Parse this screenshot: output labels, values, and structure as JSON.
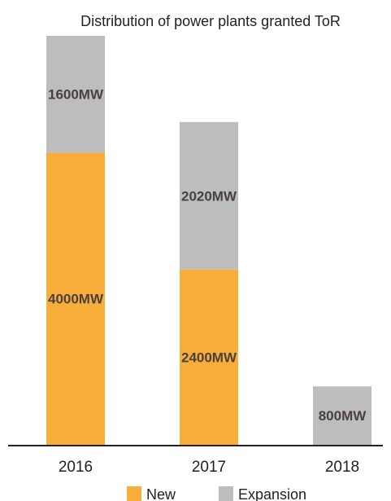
{
  "chart_data": {
    "type": "bar",
    "stacked": true,
    "title": "Distribution of power plants granted ToR",
    "xlabel": "",
    "ylabel": "",
    "categories": [
      "2016",
      "2017",
      "2018"
    ],
    "series": [
      {
        "name": "New",
        "color": "#f9ae3b",
        "values": [
          4000,
          2400,
          0
        ],
        "labels": [
          "4000MW",
          "2400MW",
          ""
        ]
      },
      {
        "name": "Expansion",
        "color": "#bdbdc0",
        "values": [
          1600,
          2020,
          800
        ],
        "labels": [
          "1600MW",
          "2020MW",
          "800MW"
        ]
      }
    ],
    "ylim": [
      0,
      5600
    ],
    "grid": false,
    "legend": "bottom"
  }
}
